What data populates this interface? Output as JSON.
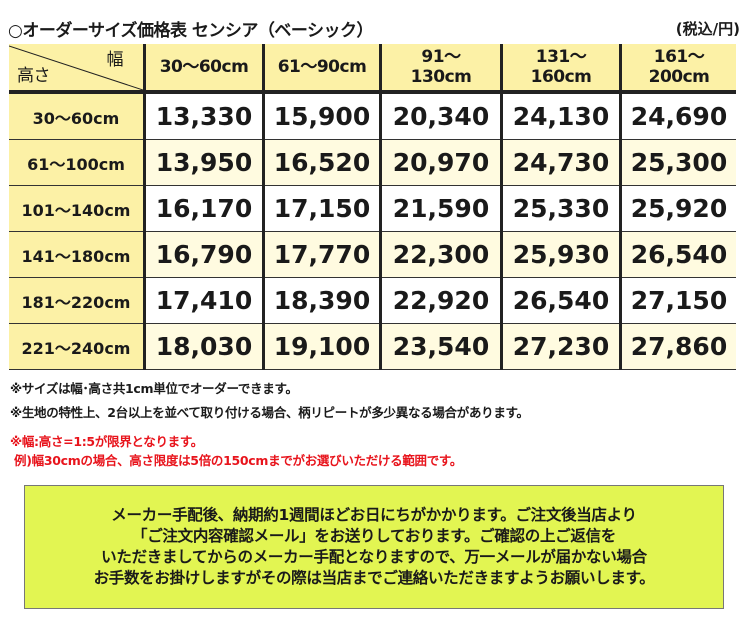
{
  "title": "○オーダーサイズ価格表  センシア（ベーシック）",
  "unit": "(税込/円)",
  "table": {
    "corner_width": "幅",
    "corner_height": "高さ",
    "columns": [
      [
        "30～60cm",
        ""
      ],
      [
        "61～90cm",
        ""
      ],
      [
        "91～",
        "130cm"
      ],
      [
        "131～",
        "160cm"
      ],
      [
        "161～",
        "200cm"
      ]
    ],
    "rows": [
      {
        "label": "30～60cm",
        "values": [
          "13,330",
          "15,900",
          "20,340",
          "24,130",
          "24,690"
        ]
      },
      {
        "label": "61～100cm",
        "values": [
          "13,950",
          "16,520",
          "20,970",
          "24,730",
          "25,300"
        ]
      },
      {
        "label": "101～140cm",
        "values": [
          "16,170",
          "17,150",
          "21,590",
          "25,330",
          "25,920"
        ]
      },
      {
        "label": "141～180cm",
        "values": [
          "16,790",
          "17,770",
          "22,300",
          "25,930",
          "26,540"
        ]
      },
      {
        "label": "181～220cm",
        "values": [
          "17,410",
          "18,390",
          "22,920",
          "26,540",
          "27,150"
        ]
      },
      {
        "label": "221～240cm",
        "values": [
          "18,030",
          "19,100",
          "23,540",
          "27,230",
          "27,860"
        ]
      }
    ]
  },
  "notes": [
    "※サイズは幅･高さ共1cm単位でオーダーできます。",
    "※生地の特性上、2台以上を並べて取り付ける場合、柄リピートが多少異なる場合があります。"
  ],
  "red_notes": [
    "※幅:高さ=1:5が限界となります。",
    " 例)幅30cmの場合、高さ限度は5倍の150cmまでがお選びいただける範囲です。"
  ],
  "notice": [
    "メーカー手配後、納期約1週間ほどお日にちがかかります。ご注文後当店より",
    "「ご注文内容確認メール」をお送りしております。ご確認の上ご返信を",
    "いただきましてからのメーカー手配となりますので、万一メールが届かない場合",
    "お手数をお掛けしますがその際は当店までご連絡いただきますようお願いします。"
  ],
  "colors": {
    "header_bg": "#fcf1a6",
    "notice_bg": "#e2f552",
    "warning": "#e8141c"
  }
}
